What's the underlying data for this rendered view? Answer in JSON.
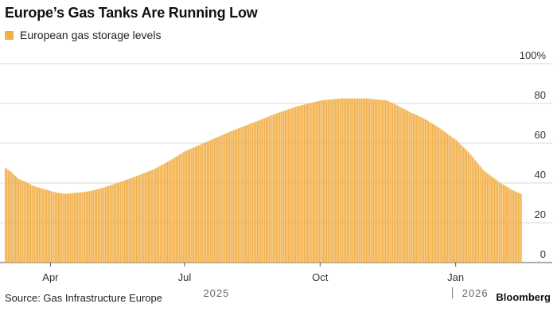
{
  "chart_data": {
    "type": "bar",
    "title": "Europe’s Gas Tanks Are Running Low",
    "legend": [
      {
        "name": "European gas storage levels",
        "color": "#f2b04a"
      }
    ],
    "source": "Source: Gas Infrastructure Europe",
    "brand": "Bloomberg",
    "ylim": [
      0,
      100
    ],
    "yticks": [
      {
        "value": 100,
        "label": "100%"
      },
      {
        "value": 80,
        "label": "80"
      },
      {
        "value": 60,
        "label": "60"
      },
      {
        "value": 40,
        "label": "40"
      },
      {
        "value": 20,
        "label": "20"
      },
      {
        "value": 0,
        "label": "0"
      }
    ],
    "x_range": [
      "2025-03-01",
      "2026-02-15"
    ],
    "xticks": [
      {
        "date": "2025-04-01",
        "label": "Apr"
      },
      {
        "date": "2025-07-01",
        "label": "Jul"
      },
      {
        "date": "2025-10-01",
        "label": "Oct"
      },
      {
        "date": "2026-01-01",
        "label": "Jan"
      }
    ],
    "year_labels": [
      {
        "date": "2025-07-01",
        "label": "2025"
      },
      {
        "date": "2026-01-01",
        "label": "2026",
        "marker": true
      }
    ],
    "series": [
      {
        "name": "European gas storage levels",
        "color": "#f2b04a",
        "points": [
          [
            "2025-03-01",
            47.5
          ],
          [
            "2025-03-05",
            45.5
          ],
          [
            "2025-03-10",
            42
          ],
          [
            "2025-03-15",
            40.5
          ],
          [
            "2025-03-20",
            38.5
          ],
          [
            "2025-03-27",
            37
          ],
          [
            "2025-04-03",
            35.5
          ],
          [
            "2025-04-10",
            34.5
          ],
          [
            "2025-04-17",
            35
          ],
          [
            "2025-04-24",
            35.5
          ],
          [
            "2025-05-01",
            36.5
          ],
          [
            "2025-05-10",
            38.5
          ],
          [
            "2025-05-20",
            41
          ],
          [
            "2025-05-31",
            44
          ],
          [
            "2025-06-10",
            47
          ],
          [
            "2025-06-20",
            51
          ],
          [
            "2025-07-01",
            56
          ],
          [
            "2025-07-15",
            60.5
          ],
          [
            "2025-08-01",
            66
          ],
          [
            "2025-08-15",
            70
          ],
          [
            "2025-09-01",
            75
          ],
          [
            "2025-09-15",
            78.5
          ],
          [
            "2025-10-01",
            81.5
          ],
          [
            "2025-10-15",
            82.5
          ],
          [
            "2025-11-01",
            82.5
          ],
          [
            "2025-11-15",
            81.5
          ],
          [
            "2025-11-22",
            79
          ],
          [
            "2025-12-01",
            75.5
          ],
          [
            "2025-12-10",
            72.5
          ],
          [
            "2025-12-20",
            68
          ],
          [
            "2026-01-01",
            61.5
          ],
          [
            "2026-01-10",
            55
          ],
          [
            "2026-01-20",
            46
          ],
          [
            "2026-01-31",
            40
          ],
          [
            "2026-02-08",
            36.5
          ],
          [
            "2026-02-14",
            34.5
          ]
        ]
      }
    ]
  }
}
